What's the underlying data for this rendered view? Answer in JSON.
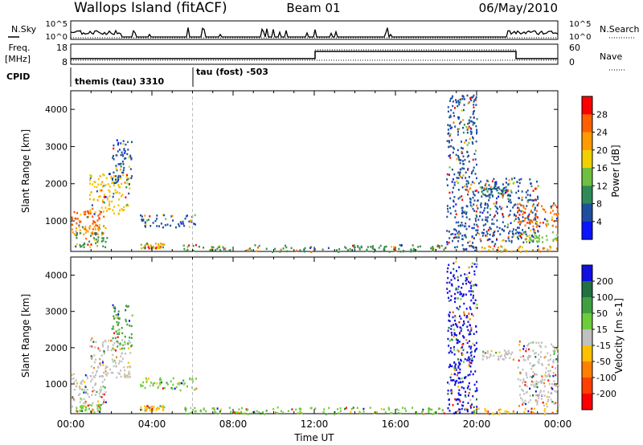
{
  "header": {
    "title": "Wallops Island (fitACF)",
    "beam": "Beam 01",
    "date": "06/May/2010"
  },
  "aux_panels": {
    "nsky": {
      "label": "N.Sky",
      "ticks": [
        "10^5",
        "10^0"
      ]
    },
    "nsearch": {
      "label": "N.Search",
      "ticks": [
        "10^5",
        "10^0"
      ]
    },
    "freq": {
      "label_line1": "Freq.",
      "label_line2": "[MHz]",
      "ticks": [
        "18",
        "8"
      ]
    },
    "nave": {
      "label": "Nave",
      "ticks": [
        "60",
        "0"
      ]
    },
    "cpid": {
      "label": "CPID",
      "segments": [
        "themis (tau) 3310",
        "tau (fost) -503"
      ]
    }
  },
  "chart_data": [
    {
      "type": "heatmap",
      "name": "power",
      "ylabel": "Slant Range [km]",
      "ylim": [
        180,
        4500
      ],
      "yticks": [
        "1000",
        "2000",
        "3000",
        "4000"
      ],
      "xlim": [
        0,
        24
      ],
      "colorbar": {
        "label": "Power [dB]",
        "ticks": [
          "28",
          "24",
          "20",
          "16",
          "12",
          "8",
          "4"
        ],
        "colors": [
          "#ff0000",
          "#ff6000",
          "#ff9a00",
          "#f0d000",
          "#6fc040",
          "#2e8b57",
          "#1f4ea0",
          "#0a14ff"
        ]
      },
      "clusters": [
        {
          "t0": 0.0,
          "t1": 1.6,
          "r0": 800,
          "r1": 1300,
          "color": "#ff5000"
        },
        {
          "t0": 0.0,
          "t1": 1.7,
          "r0": 600,
          "r1": 900,
          "color": "#ff9a00"
        },
        {
          "t0": 0.2,
          "t1": 1.8,
          "r0": 300,
          "r1": 700,
          "color": "#3a8f4a"
        },
        {
          "t0": 0.9,
          "t1": 2.9,
          "r0": 1200,
          "r1": 2300,
          "color": "#f0c000"
        },
        {
          "t0": 2.0,
          "t1": 3.0,
          "r0": 2000,
          "r1": 3200,
          "color": "#1f4ea0"
        },
        {
          "t0": 3.4,
          "t1": 6.2,
          "r0": 850,
          "r1": 1200,
          "color": "#1f4ea0"
        },
        {
          "t0": 3.4,
          "t1": 4.6,
          "r0": 280,
          "r1": 420,
          "color": "#e0b000"
        },
        {
          "t0": 5.5,
          "t1": 18.5,
          "r0": 190,
          "r1": 380,
          "color": "#3a8f4a"
        },
        {
          "t0": 18.5,
          "t1": 20.0,
          "r0": 200,
          "r1": 4400,
          "color": "#1f4ea0"
        },
        {
          "t0": 20.2,
          "t1": 21.8,
          "r0": 1700,
          "r1": 1950,
          "color": "#2e8b57"
        },
        {
          "t0": 20.0,
          "t1": 23.0,
          "r0": 400,
          "r1": 2200,
          "color": "#1f4ea0"
        },
        {
          "t0": 22.0,
          "t1": 24.0,
          "r0": 850,
          "r1": 1500,
          "color": "#ff7000"
        },
        {
          "t0": 22.0,
          "t1": 24.0,
          "r0": 450,
          "r1": 800,
          "color": "#6fc040"
        },
        {
          "t0": 19.8,
          "t1": 24.0,
          "r0": 190,
          "r1": 350,
          "color": "#e0a000"
        }
      ]
    },
    {
      "type": "heatmap",
      "name": "velocity",
      "ylabel": "Slant Range [km]",
      "ylim": [
        180,
        4500
      ],
      "yticks": [
        "1000",
        "2000",
        "3000",
        "4000"
      ],
      "xlim": [
        0,
        24
      ],
      "xlabel": "Time UT",
      "xticks": [
        "00:00",
        "04:00",
        "08:00",
        "12:00",
        "16:00",
        "20:00",
        "00:00"
      ],
      "colorbar": {
        "label": "Velocity [m s-1]",
        "ticks": [
          "200",
          "100",
          "50",
          "15",
          "-15",
          "-50",
          "-100",
          "-200"
        ],
        "colors": [
          "#1010e0",
          "#207040",
          "#40a040",
          "#6ccc3a",
          "#c0c0c0",
          "#ffc000",
          "#ff8000",
          "#ff4000",
          "#ff0000"
        ]
      },
      "clusters": [
        {
          "t0": 0.0,
          "t1": 1.7,
          "r0": 400,
          "r1": 1300,
          "color": "#c0c0c0"
        },
        {
          "t0": 0.9,
          "t1": 2.9,
          "r0": 1200,
          "r1": 2300,
          "color": "#c0c0c0"
        },
        {
          "t0": 0.2,
          "t1": 1.5,
          "r0": 250,
          "r1": 450,
          "color": "#6ccc3a"
        },
        {
          "t0": 2.0,
          "t1": 3.0,
          "r0": 2000,
          "r1": 3200,
          "color": "#40a040"
        },
        {
          "t0": 3.4,
          "t1": 6.2,
          "r0": 850,
          "r1": 1200,
          "color": "#6ccc3a"
        },
        {
          "t0": 3.4,
          "t1": 4.6,
          "r0": 280,
          "r1": 420,
          "color": "#ffc000"
        },
        {
          "t0": 5.5,
          "t1": 18.5,
          "r0": 190,
          "r1": 380,
          "color": "#6ccc3a"
        },
        {
          "t0": 18.5,
          "t1": 20.0,
          "r0": 200,
          "r1": 4400,
          "color": "#1010e0"
        },
        {
          "t0": 20.2,
          "t1": 21.8,
          "r0": 1700,
          "r1": 1950,
          "color": "#c0c0c0"
        },
        {
          "t0": 22.0,
          "t1": 24.0,
          "r0": 400,
          "r1": 2200,
          "color": "#c0c0c0"
        },
        {
          "t0": 19.8,
          "t1": 24.0,
          "r0": 190,
          "r1": 350,
          "color": "#ffc000"
        }
      ]
    }
  ]
}
